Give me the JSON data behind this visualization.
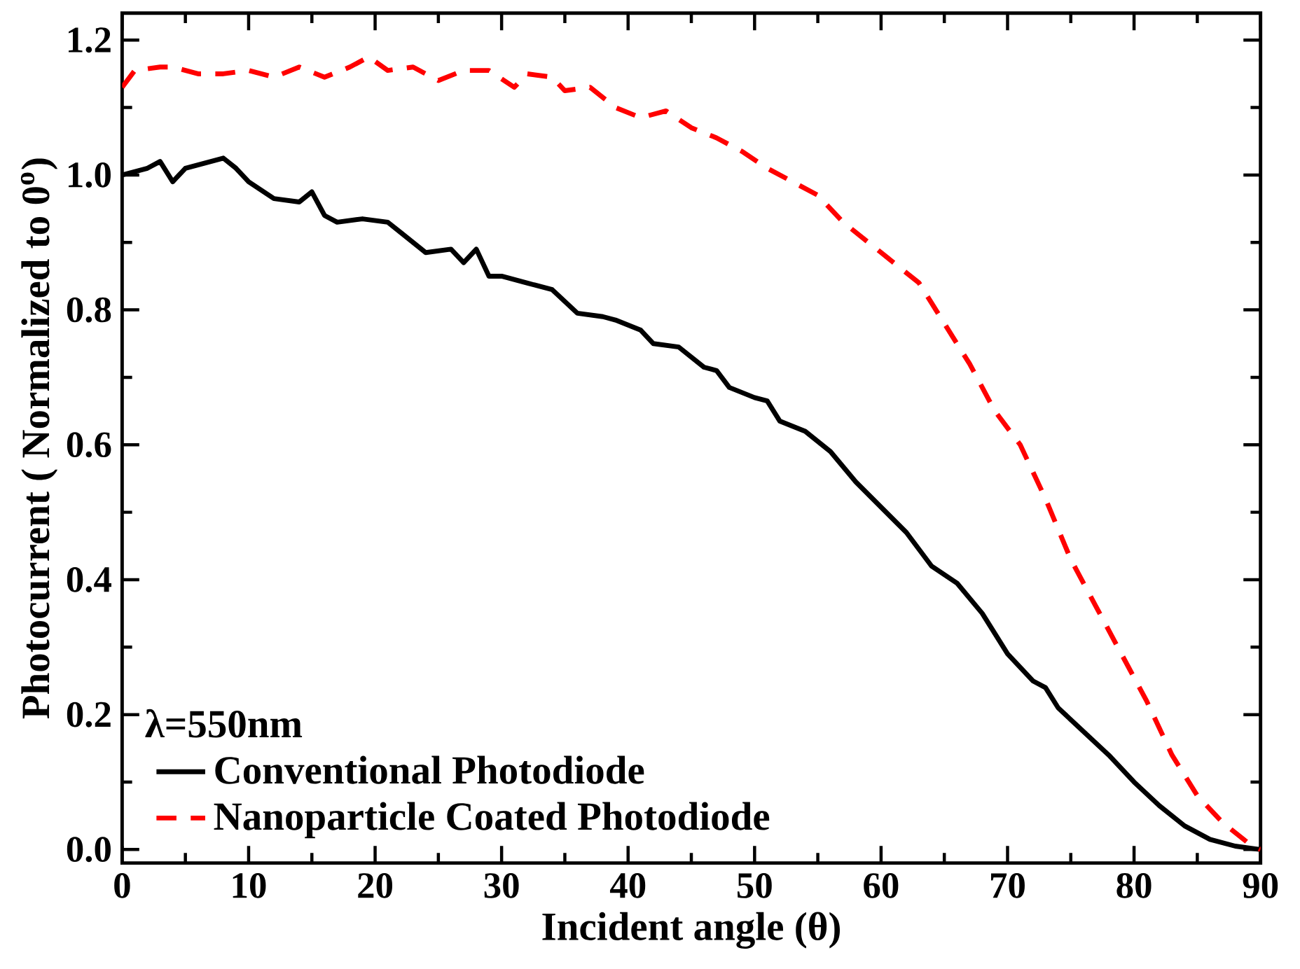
{
  "chart_data": {
    "type": "line",
    "xlabel": "Incident angle (θ)",
    "ylabel": "Photocurrent ( Normalized to 0$^{o}$)",
    "legend_title": "λ=550nm",
    "legend": "bottom left",
    "marker": "none",
    "xlim": [
      0,
      90
    ],
    "xticks": [
      0,
      10,
      20,
      30,
      40,
      50,
      60,
      70,
      80,
      90
    ],
    "ylim": [
      -0.02,
      1.24
    ],
    "yticks": [
      {
        "value": 0,
        "label": "0.0"
      },
      0.2,
      0.4,
      0.6,
      0.8,
      {
        "value": 1,
        "label": "1.0"
      },
      1.2
    ],
    "series": [
      {
        "name": "Conventional Photodiode",
        "color": "#000000",
        "line_style": "solid",
        "x": [
          0,
          2,
          3,
          4,
          5,
          8,
          9,
          10,
          12,
          14,
          15,
          16,
          17,
          19,
          21,
          22,
          24,
          26,
          27,
          28,
          29,
          30,
          32,
          34,
          36,
          38,
          39,
          41,
          42,
          44,
          46,
          47,
          48,
          50,
          51,
          52,
          54,
          56,
          58,
          62,
          64,
          66,
          68,
          70,
          72,
          73,
          74,
          78,
          80,
          82,
          84,
          86,
          88,
          90
        ],
        "values": [
          1.0,
          1.01,
          1.02,
          0.99,
          1.01,
          1.025,
          1.01,
          0.99,
          0.965,
          0.96,
          0.975,
          0.94,
          0.93,
          0.935,
          0.93,
          0.915,
          0.885,
          0.89,
          0.87,
          0.89,
          0.85,
          0.85,
          0.84,
          0.83,
          0.795,
          0.79,
          0.785,
          0.77,
          0.75,
          0.745,
          0.715,
          0.71,
          0.685,
          0.67,
          0.665,
          0.635,
          0.62,
          0.59,
          0.545,
          0.47,
          0.42,
          0.395,
          0.35,
          0.29,
          0.25,
          0.24,
          0.21,
          0.14,
          0.1,
          0.065,
          0.035,
          0.015,
          0.005,
          0.0
        ]
      },
      {
        "name": "Nanoparticle Coated Photodiode",
        "color": "#ff0000",
        "line_style": "dashed",
        "x": [
          0,
          1,
          3,
          4,
          6,
          8,
          10,
          12,
          14,
          16,
          18,
          19.5,
          21,
          23,
          25,
          27,
          29,
          31,
          32,
          34,
          35,
          37,
          39,
          41,
          43,
          45,
          47,
          49,
          51,
          53,
          55,
          57,
          59,
          61,
          63,
          65,
          67,
          69,
          71,
          73,
          75,
          77,
          79,
          81,
          83,
          85,
          87,
          89,
          90
        ],
        "values": [
          1.13,
          1.155,
          1.16,
          1.16,
          1.15,
          1.15,
          1.155,
          1.145,
          1.16,
          1.145,
          1.16,
          1.175,
          1.155,
          1.16,
          1.14,
          1.155,
          1.155,
          1.13,
          1.15,
          1.145,
          1.125,
          1.13,
          1.1,
          1.085,
          1.095,
          1.07,
          1.055,
          1.035,
          1.01,
          0.99,
          0.97,
          0.93,
          0.9,
          0.87,
          0.84,
          0.78,
          0.72,
          0.65,
          0.6,
          0.52,
          0.43,
          0.36,
          0.29,
          0.22,
          0.14,
          0.08,
          0.04,
          0.01,
          0.0
        ]
      }
    ]
  }
}
